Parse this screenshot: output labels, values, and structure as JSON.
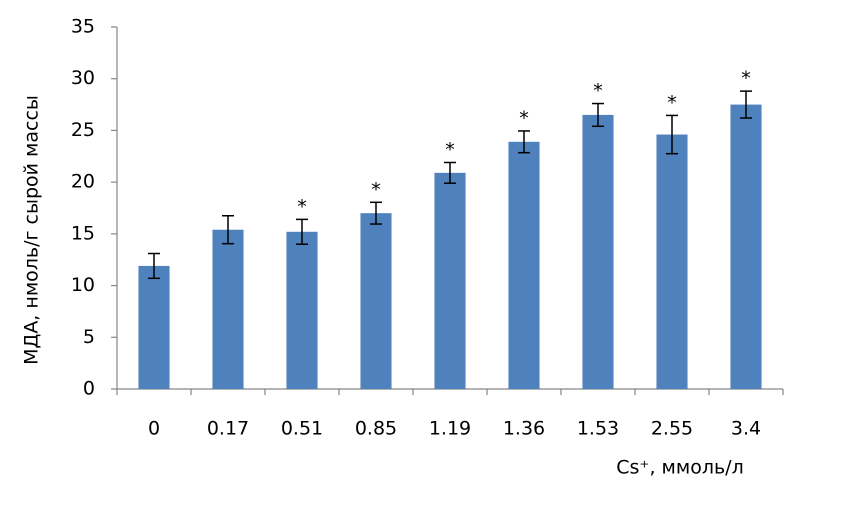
{
  "chart_data": {
    "type": "bar",
    "y_label": "МДА, нмоль/г сырой массы",
    "x_label": "Cs⁺, ммоль/л",
    "categories": [
      "0",
      "0.17",
      "0.51",
      "0.85",
      "1.19",
      "1.36",
      "1.53",
      "2.55",
      "3.4"
    ],
    "values": [
      11.9,
      15.4,
      15.2,
      17.0,
      20.9,
      23.9,
      26.5,
      24.6,
      27.5
    ],
    "errors": [
      1.2,
      1.35,
      1.2,
      1.05,
      1.0,
      1.05,
      1.1,
      1.85,
      1.3
    ],
    "annotations": [
      null,
      null,
      "*",
      "*",
      "*",
      "*",
      "*",
      "*",
      "*"
    ],
    "color": "#4f81bd",
    "ylim": [
      0,
      35
    ],
    "yticks": [
      0,
      5,
      10,
      15,
      20,
      25,
      30,
      35
    ],
    "grid": false
  }
}
